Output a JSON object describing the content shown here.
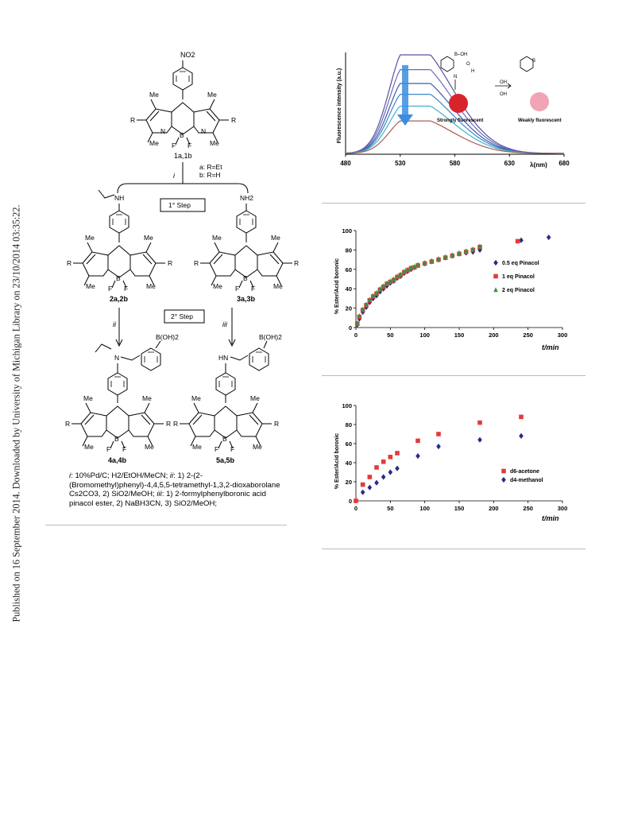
{
  "sidebar": {
    "text": "Published on 16 September 2014. Downloaded by University of Michigan Library on 23/10/2014 03:35:22."
  },
  "scheme": {
    "top_group": "NO2",
    "compound_1": "1a,1b",
    "variants": [
      "a: R=Et",
      "b: R=H"
    ],
    "step1_reagent": "i",
    "step1_label": "1° Step",
    "amine_ethyl": "NH",
    "amine_primary": "NH2",
    "compound_2": "2a,2b",
    "compound_3": "3a,3b",
    "step2_label": "2° Step",
    "step2_left": "ii",
    "step2_right": "iii",
    "boronic": "B(OH)2",
    "compound_4": "4a,4b",
    "compound_5": "5a,5b",
    "sub_R": "R",
    "sub_Me": "Me",
    "sub_F": "F",
    "sub_B": "B",
    "sub_N": "N",
    "sub_N_ethyl": "N",
    "sub_HN": "HN"
  },
  "caption": {
    "i_label": "i",
    "i_text": ": 10%Pd/C; H2/EtOH/MeCN; ",
    "ii_label": "ii",
    "ii_text": ": 1) 2-(2-(Bromomethyl)phenyl)-4,4,5,5-tetramethyl-1,3,2-dioxaborolane Cs2CO3, 2) SiO2/MeOH; ",
    "iii_label": "iii",
    "iii_text": ": 1) 2-formylphenylboronic acid pinacol ester, 2) NaBH3CN, 3) SiO2/MeOH;"
  },
  "fluorescence_inset": {
    "left_label": "Strongly fluorescent",
    "right_label": "Weakly fluorescent",
    "oh_top": "OH",
    "oh_bottom": "OH",
    "boh": "B–OH",
    "o": "O",
    "b": "B",
    "h": "H",
    "n": "N"
  },
  "colors": {
    "red_marker": "#e43a3a",
    "blue_marker": "#2b2b83",
    "green_marker": "#3f8f3f",
    "arrow": "#3a8ee0"
  },
  "chart_data": [
    {
      "type": "line",
      "ylabel": "Fluorescence intensity (a.u.)",
      "xlabel": "λ(nm)",
      "x_ticks": [
        "480",
        "530",
        "580",
        "630",
        "680"
      ],
      "xlim": [
        480,
        680
      ],
      "peak_x": 536,
      "series": [
        {
          "color": "#5a4f9c",
          "peak": 1.0
        },
        {
          "color": "#6e68b8",
          "peak": 0.85
        },
        {
          "color": "#3b5da8",
          "peak": 0.71
        },
        {
          "color": "#3f86c8",
          "peak": 0.6
        },
        {
          "color": "#3fb2cc",
          "peak": 0.48
        },
        {
          "color": "#a86050",
          "peak": 0.33
        }
      ]
    },
    {
      "type": "scatter",
      "ylabel": "% Ester/Acid boronic",
      "xlabel": "t/min",
      "xlim": [
        0,
        300
      ],
      "ylim": [
        0,
        100
      ],
      "x_ticks": [
        "0",
        "50",
        "100",
        "150",
        "200",
        "250",
        "300"
      ],
      "y_ticks": [
        "0",
        "20",
        "40",
        "60",
        "80",
        "100"
      ],
      "series": [
        {
          "name": "0.5 eq Pinacol",
          "marker": "diamond",
          "color": "#2b2b83",
          "x": [
            2,
            5,
            10,
            15,
            20,
            25,
            30,
            35,
            40,
            45,
            50,
            55,
            60,
            65,
            70,
            75,
            80,
            85,
            90,
            100,
            110,
            120,
            130,
            140,
            150,
            160,
            170,
            180,
            240,
            280
          ],
          "y": [
            3,
            9,
            16,
            21,
            26,
            30,
            33,
            37,
            40,
            43,
            46,
            48,
            51,
            53,
            56,
            58,
            60,
            62,
            64,
            66,
            68,
            70,
            72,
            74,
            76,
            77,
            78,
            80,
            90,
            93
          ]
        },
        {
          "name": "1 eq Pinacol",
          "marker": "square",
          "color": "#e43a3a",
          "x": [
            2,
            5,
            10,
            15,
            20,
            25,
            30,
            35,
            40,
            45,
            50,
            55,
            60,
            65,
            70,
            75,
            80,
            85,
            90,
            100,
            110,
            120,
            130,
            140,
            150,
            160,
            170,
            180,
            235
          ],
          "y": [
            4,
            11,
            18,
            23,
            28,
            32,
            35,
            39,
            42,
            45,
            47,
            49,
            52,
            54,
            57,
            59,
            61,
            62,
            64,
            66,
            68,
            70,
            72,
            74,
            76,
            78,
            80,
            83,
            89
          ]
        },
        {
          "name": "2 eq Pinacol",
          "marker": "triangle",
          "color": "#3f8f3f",
          "x": [
            2,
            5,
            10,
            15,
            20,
            25,
            30,
            35,
            40,
            45,
            50,
            55,
            60,
            65,
            70,
            75,
            80,
            85,
            90,
            100,
            110,
            120,
            130,
            140,
            150,
            160,
            170,
            180
          ],
          "y": [
            5,
            12,
            19,
            24,
            29,
            33,
            36,
            40,
            43,
            46,
            48,
            50,
            53,
            55,
            58,
            60,
            62,
            63,
            65,
            67,
            69,
            71,
            73,
            75,
            77,
            79,
            81,
            84
          ]
        }
      ]
    },
    {
      "type": "scatter",
      "ylabel": "% Ester/Acid boronic",
      "xlabel": "t/min",
      "xlim": [
        0,
        300
      ],
      "ylim": [
        0,
        100
      ],
      "x_ticks": [
        "0",
        "50",
        "100",
        "150",
        "200",
        "250",
        "300"
      ],
      "y_ticks": [
        "0",
        "20",
        "40",
        "60",
        "80",
        "100"
      ],
      "series": [
        {
          "name": "d6-acetone",
          "marker": "square",
          "color": "#e43a3a",
          "x": [
            0,
            10,
            20,
            30,
            40,
            50,
            60,
            90,
            120,
            180,
            240
          ],
          "y": [
            0,
            17,
            25,
            35,
            41,
            46,
            50,
            63,
            70,
            82,
            88
          ]
        },
        {
          "name": "d4-methanol",
          "marker": "diamond",
          "color": "#2b2b83",
          "x": [
            10,
            20,
            30,
            40,
            50,
            60,
            90,
            120,
            180,
            240
          ],
          "y": [
            9,
            14,
            19,
            25,
            30,
            34,
            47,
            57,
            64,
            68
          ]
        }
      ]
    }
  ]
}
